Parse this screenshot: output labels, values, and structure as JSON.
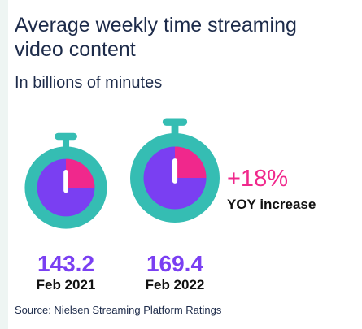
{
  "title": "Average weekly time streaming video content",
  "subtitle": "In billions of minutes",
  "source": "Source: Nielsen Streaming Platform Ratings",
  "colors": {
    "teal": "#35bdb3",
    "purple": "#7a3ff2",
    "pink": "#f0288c",
    "white": "#ffffff",
    "navy": "#1d2b4a"
  },
  "chart_data": {
    "type": "bar",
    "categories": [
      "Feb 2021",
      "Feb 2022"
    ],
    "values": [
      143.2,
      169.4
    ],
    "value_labels": [
      "143.2",
      "169.4"
    ],
    "annotation": {
      "value": "+18%",
      "label": "YOY increase"
    }
  }
}
